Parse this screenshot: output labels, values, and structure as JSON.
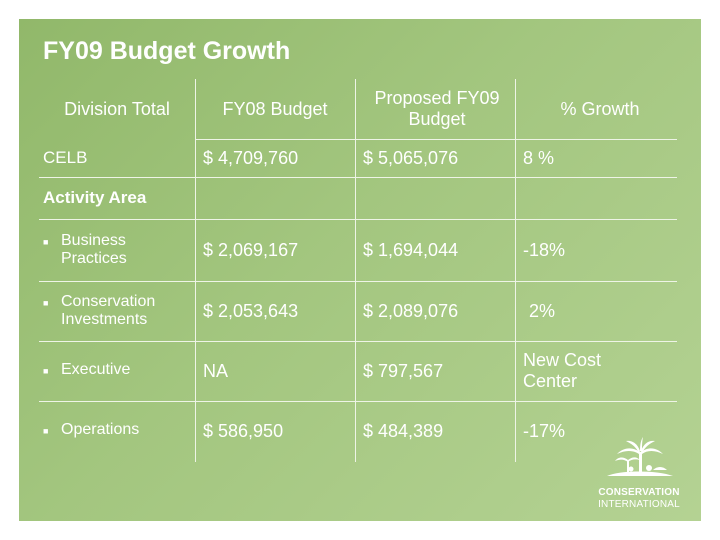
{
  "title": "FY09 Budget Growth",
  "header": {
    "division": "Division Total",
    "fy08": "FY08 Budget",
    "proposed": "Proposed FY09 Budget",
    "growth": "% Growth"
  },
  "celb": {
    "name": "CELB",
    "fy08": "$ 4,709,760",
    "fy09": "$ 5,065,076",
    "growth": "8 %"
  },
  "activity_area": "Activity Area",
  "rows": [
    {
      "name": "Business Practices",
      "fy08": "$ 2,069,167",
      "fy09": "$ 1,694,044",
      "growth": "-18%"
    },
    {
      "name": "Conservation Investments",
      "fy08": "$ 2,053,643",
      "fy09": "$ 2,089,076",
      "growth": "2%"
    },
    {
      "name": "Executive",
      "fy08": "NA",
      "fy09": "$ 797,567",
      "growth": "New Cost Center"
    },
    {
      "name": "Operations",
      "fy08": "$ 586,950",
      "fy09": "$ 484,389",
      "growth": "-17%"
    }
  ],
  "logo": {
    "line1": "CONSERVATION",
    "line2": "INTERNATIONAL"
  },
  "colors": {
    "background": "#a3c67f",
    "text": "#ffffff",
    "rule": "#eef4e6"
  }
}
